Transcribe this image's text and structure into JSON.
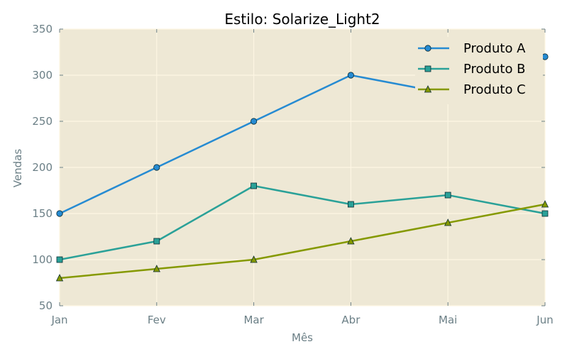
{
  "chart_data": {
    "type": "line",
    "title": "Estilo: Solarize_Light2",
    "xlabel": "Mês",
    "ylabel": "Vendas",
    "categories": [
      "Jan",
      "Fev",
      "Mar",
      "Abr",
      "Mai",
      "Jun"
    ],
    "ylim": [
      50,
      350
    ],
    "yticks": [
      50,
      100,
      150,
      200,
      250,
      300,
      350
    ],
    "grid": true,
    "legend_position": "top-right",
    "series": [
      {
        "name": "Produto A",
        "marker": "circle",
        "color": "#268bd2",
        "values": [
          150,
          200,
          250,
          300,
          280,
          320
        ]
      },
      {
        "name": "Produto B",
        "marker": "square",
        "color": "#2aa198",
        "values": [
          100,
          120,
          180,
          160,
          170,
          150
        ]
      },
      {
        "name": "Produto C",
        "marker": "triangle",
        "color": "#859900",
        "values": [
          80,
          90,
          100,
          120,
          140,
          160
        ]
      }
    ],
    "colors": {
      "plot_background": "#eee8d5",
      "grid": "#fdf6e3",
      "tick_text": "#6b7f86"
    }
  }
}
